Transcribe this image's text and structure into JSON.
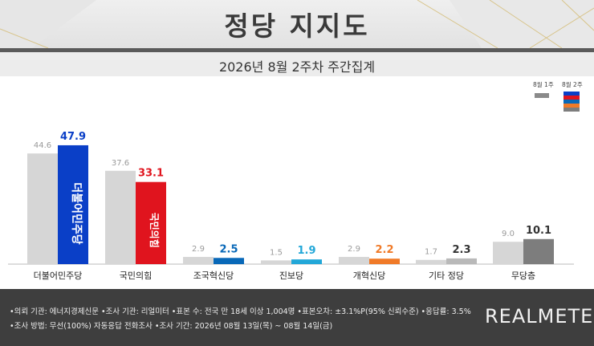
{
  "header": {
    "title": "정당 지지도",
    "subtitle": "2026년 8월 2주차 주간집계"
  },
  "legend": {
    "prev": "8월 1주",
    "curr": "8월 2주"
  },
  "colors": {
    "prev_bar": "#d6d6d6",
    "minjoo": "#0a3fc7",
    "ppp": "#e0141e",
    "rebuild": "#0868b8",
    "jinbo": "#22a7d8",
    "reform": "#f07a28",
    "other": "#b9b9b9",
    "none": "#7d7d7d",
    "label_dark": "#333333"
  },
  "chart_data": {
    "type": "bar",
    "categories": [
      "더불어민주당",
      "국민의힘",
      "조국혁신당",
      "진보당",
      "개혁신당",
      "기타 정당",
      "무당층"
    ],
    "series": [
      {
        "name": "8월 1주",
        "values": [
          44.6,
          37.6,
          2.9,
          1.5,
          2.9,
          1.7,
          9.0
        ]
      },
      {
        "name": "8월 2주",
        "values": [
          47.9,
          33.1,
          2.5,
          1.9,
          2.2,
          2.3,
          10.1
        ]
      }
    ],
    "prev_labels": [
      "44.6",
      "37.6",
      "2.9",
      "1.5",
      "2.9",
      "1.7",
      "9.0"
    ],
    "curr_labels": [
      "47.9",
      "33.1",
      "2.5",
      "1.9",
      "2.2",
      "2.3",
      "10.1"
    ],
    "curr_color_keys": [
      "minjoo",
      "ppp",
      "rebuild",
      "jinbo",
      "reform",
      "other",
      "none"
    ],
    "bar_logos": [
      "더불어민주당",
      "국민의힘",
      "",
      "",
      "",
      "",
      ""
    ],
    "ylim": [
      0,
      55
    ],
    "title": "",
    "xlabel": "",
    "ylabel": ""
  },
  "footer": {
    "line1": "•의뢰 기관: 에너지경제신문  •조사 기관: 리얼미터  •표본 수: 전국 만 18세 이상 1,004명  •표본오차: ±3.1%P(95% 신뢰수준)  •응답률: 3.5%",
    "line2": "•조사 방법: 무선(100%) 자동응답 전화조사  •조사 기간: 2026년 08월 13일(목) ~ 08월 14일(금)",
    "brand": "REALMETER"
  }
}
